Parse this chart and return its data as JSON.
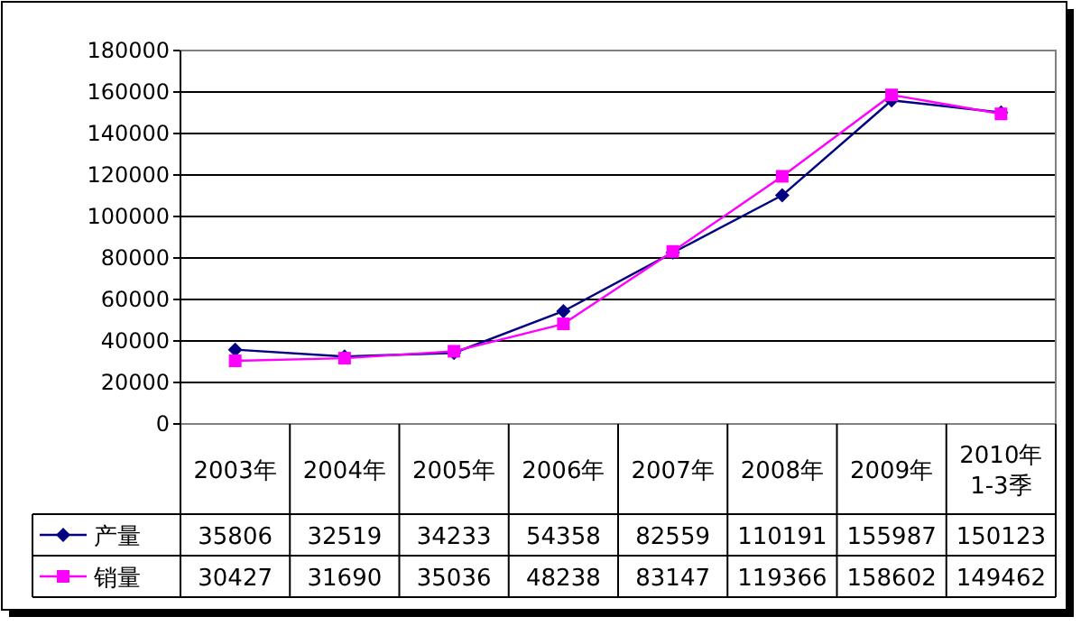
{
  "chart_data": {
    "type": "line",
    "categories": [
      "2003年",
      "2004年",
      "2005年",
      "2006年",
      "2007年",
      "2008年",
      "2009年",
      "2010年\n1-3季"
    ],
    "series": [
      {
        "name": "产量",
        "color": "#000080",
        "marker": "diamond",
        "values": [
          35806,
          32519,
          34233,
          54358,
          82559,
          110191,
          155987,
          150123
        ]
      },
      {
        "name": "销量",
        "color": "#ff00ff",
        "marker": "square",
        "values": [
          30427,
          31690,
          35036,
          48238,
          83147,
          119366,
          158602,
          149462
        ]
      }
    ],
    "ylim": [
      0,
      180000
    ],
    "yticks": [
      0,
      20000,
      40000,
      60000,
      80000,
      100000,
      120000,
      140000,
      160000,
      180000
    ],
    "grid": "y",
    "data_labels": true,
    "legend": "bottom",
    "line_style": "solid"
  }
}
